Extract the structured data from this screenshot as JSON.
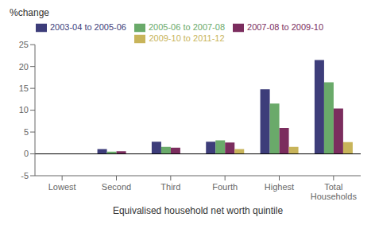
{
  "chart_data": {
    "type": "bar",
    "ylabel": "%change",
    "xlabel": "Equivalised household net worth quintile",
    "categories": [
      "Lowest",
      "Second",
      "Third",
      "Fourth",
      "Highest",
      "Total\nHouseholds"
    ],
    "series": [
      {
        "name": "2003-04 to 2005-06",
        "color": "#3d3d7a",
        "values": [
          0.0,
          1.1,
          2.8,
          2.8,
          14.8,
          21.5
        ]
      },
      {
        "name": "2005-06 to 2007-08",
        "color": "#6aaa6a",
        "values": [
          0.0,
          0.5,
          1.6,
          3.1,
          11.5,
          16.4
        ]
      },
      {
        "name": "2007-08 to 2009-10",
        "color": "#7b2d5e",
        "values": [
          0.0,
          0.6,
          1.4,
          2.6,
          5.9,
          10.4
        ]
      },
      {
        "name": "2009-10 to 2011-12",
        "color": "#c8b45a",
        "values": [
          0.0,
          0.0,
          0.0,
          1.1,
          1.6,
          2.7
        ]
      }
    ],
    "ylim": [
      -5,
      25
    ],
    "yticks": [
      -5,
      0,
      5,
      10,
      15,
      20,
      25
    ],
    "grid": false,
    "legend": "top"
  }
}
